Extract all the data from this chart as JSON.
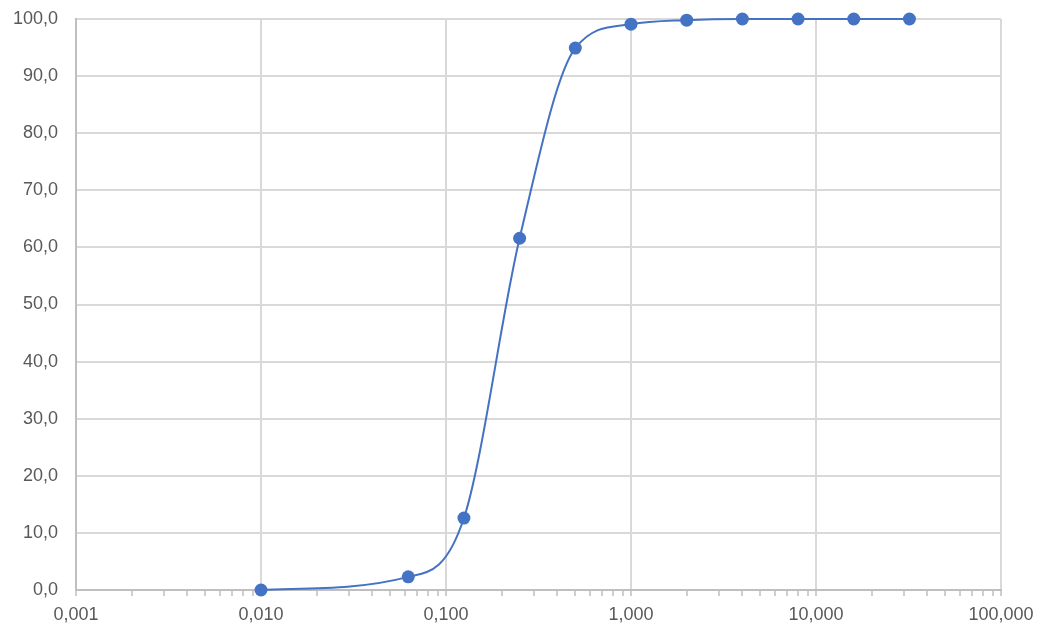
{
  "chart_data": {
    "type": "line",
    "x": [
      0.01,
      0.0625,
      0.125,
      0.25,
      0.5,
      1,
      2,
      4,
      8,
      16,
      32
    ],
    "values": [
      0,
      2.3,
      12.6,
      61.6,
      94.9,
      99.1,
      99.8,
      100,
      100,
      100,
      100
    ],
    "color": "#4472c4",
    "marker": "circle",
    "line_style": "solid",
    "log": "x",
    "grid": true,
    "xlim": [
      0.001,
      100
    ],
    "xticks": [
      {
        "value": 0.001,
        "label": "0,001"
      },
      {
        "value": 0.002,
        "label": null
      },
      {
        "value": 0.003,
        "label": null
      },
      {
        "value": 0.004,
        "label": null
      },
      {
        "value": 0.005,
        "label": null
      },
      {
        "value": 0.006,
        "label": null
      },
      {
        "value": 0.007,
        "label": null
      },
      {
        "value": 0.008,
        "label": null
      },
      {
        "value": 0.009,
        "label": null
      },
      {
        "value": 0.01,
        "label": "0,010"
      },
      {
        "value": 0.02,
        "label": null
      },
      {
        "value": 0.03,
        "label": null
      },
      {
        "value": 0.04,
        "label": null
      },
      {
        "value": 0.05,
        "label": null
      },
      {
        "value": 0.06,
        "label": null
      },
      {
        "value": 0.07,
        "label": null
      },
      {
        "value": 0.08,
        "label": null
      },
      {
        "value": 0.09,
        "label": null
      },
      {
        "value": 0.1,
        "label": "0,100"
      },
      {
        "value": 0.2,
        "label": null
      },
      {
        "value": 0.3,
        "label": null
      },
      {
        "value": 0.4,
        "label": null
      },
      {
        "value": 0.5,
        "label": null
      },
      {
        "value": 0.6,
        "label": null
      },
      {
        "value": 0.7,
        "label": null
      },
      {
        "value": 0.8,
        "label": null
      },
      {
        "value": 0.9,
        "label": null
      },
      {
        "value": 1,
        "label": "1,000"
      },
      {
        "value": 2,
        "label": null
      },
      {
        "value": 3,
        "label": null
      },
      {
        "value": 4,
        "label": null
      },
      {
        "value": 5,
        "label": null
      },
      {
        "value": 6,
        "label": null
      },
      {
        "value": 7,
        "label": null
      },
      {
        "value": 8,
        "label": null
      },
      {
        "value": 9,
        "label": null
      },
      {
        "value": 10,
        "label": "10,000"
      },
      {
        "value": 20,
        "label": null
      },
      {
        "value": 30,
        "label": null
      },
      {
        "value": 40,
        "label": null
      },
      {
        "value": 50,
        "label": null
      },
      {
        "value": 60,
        "label": null
      },
      {
        "value": 70,
        "label": null
      },
      {
        "value": 80,
        "label": null
      },
      {
        "value": 90,
        "label": null
      },
      {
        "value": 100,
        "label": "100,000"
      }
    ],
    "ylim": [
      0,
      100
    ],
    "yticks": [
      {
        "value": 0,
        "label": "0,0"
      },
      {
        "value": 10,
        "label": "10,0"
      },
      {
        "value": 20,
        "label": "20,0"
      },
      {
        "value": 30,
        "label": "30,0"
      },
      {
        "value": 40,
        "label": "40,0"
      },
      {
        "value": 50,
        "label": "50,0"
      },
      {
        "value": 60,
        "label": "60,0"
      },
      {
        "value": 70,
        "label": "70,0"
      },
      {
        "value": 80,
        "label": "80,0"
      },
      {
        "value": 90,
        "label": "90,0"
      },
      {
        "value": 100,
        "label": "100,0"
      }
    ]
  }
}
